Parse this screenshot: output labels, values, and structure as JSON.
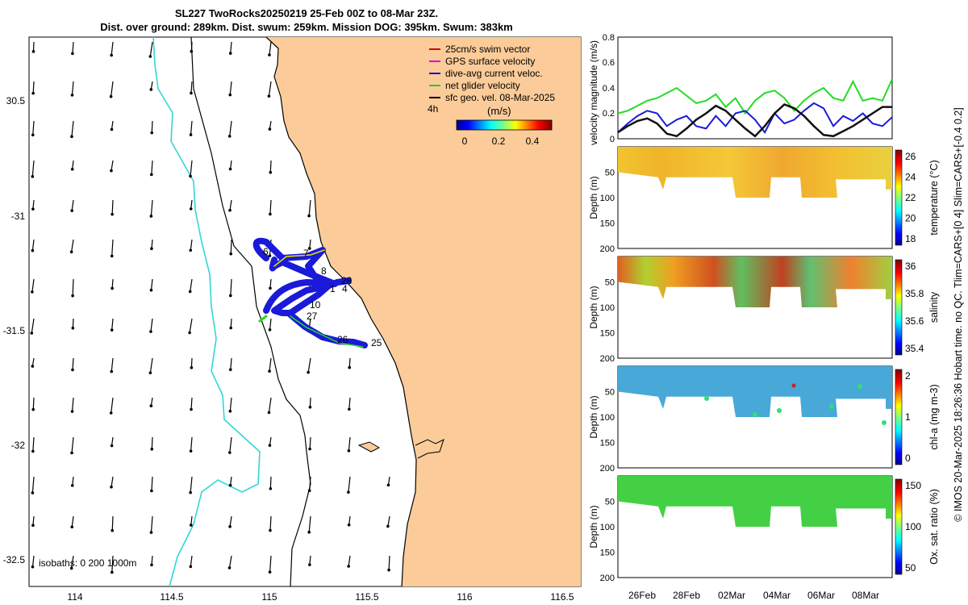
{
  "title": {
    "line1": "SL227 TwoRocks20250219 25-Feb 00Z to 08-Mar 23Z.",
    "line2": "Dist. over ground: 289km. Dist. swum: 259km. Mission DOG: 395km. Swum: 383km"
  },
  "map": {
    "x_ticks": [
      "114",
      "114.5",
      "115",
      "115.5",
      "116",
      "116.5"
    ],
    "y_ticks": [
      "30.5",
      "-31",
      "-31.5",
      "-32",
      "-32.5"
    ],
    "isobaths_label": "isobaths: 0   200  1000m",
    "time_label": "4h",
    "colorbar": {
      "unit": "(m/s)",
      "ticks": [
        "0",
        "0.2",
        "0.4"
      ]
    },
    "legend": [
      {
        "label": "25cm/s swim vector",
        "color": "#d40000"
      },
      {
        "label": "GPS surface velocity",
        "color": "#e000e0"
      },
      {
        "label": "dive-avg current veloc.",
        "color": "#1010e0"
      },
      {
        "label": "net glider velocity",
        "color": "#20d020"
      },
      {
        "label": "sfc geo. vel. 08-Mar-2025",
        "color": "#000000"
      }
    ],
    "day_labels": [
      "6",
      "7",
      "8",
      "28",
      "1",
      "4",
      "10",
      "27",
      "26",
      "25"
    ]
  },
  "panels": [
    {
      "ylabel": "velocity magnitude (m/s)",
      "yticks": [
        "0",
        "0.2",
        "0.4",
        "0.6",
        "0.8"
      ]
    },
    {
      "ylabel": "Depth (m)",
      "yticks": [
        "50",
        "100",
        "150",
        "200"
      ],
      "cbar_label": "temperature (°C)",
      "cbar_ticks": [
        "26",
        "24",
        "22",
        "20",
        "18"
      ]
    },
    {
      "ylabel": "Depth (m)",
      "yticks": [
        "50",
        "100",
        "150",
        "200"
      ],
      "cbar_label": "salinity",
      "cbar_ticks": [
        "36",
        "35.8",
        "35.6",
        "35.4"
      ]
    },
    {
      "ylabel": "Depth (m)",
      "yticks": [
        "50",
        "100",
        "150",
        "200"
      ],
      "cbar_label": "chl-a (mg m-3)",
      "cbar_ticks": [
        "2",
        "1",
        "0"
      ]
    },
    {
      "ylabel": "Depth (m)",
      "yticks": [
        "50",
        "100",
        "150",
        "200"
      ],
      "cbar_label": "Ox. sat. ratio (%)",
      "cbar_ticks": [
        "150",
        "100",
        "50"
      ]
    }
  ],
  "time_axis": [
    "26Feb",
    "28Feb",
    "02Mar",
    "04Mar",
    "06Mar",
    "08Mar"
  ],
  "side_note": "© IMOS 20-Mar-2025 18:26:36 Hobart time. no QC. Tlim=CARS+[0 4] Slim=CARS+[-0.4 0.2]",
  "chart_data": {
    "type": "line",
    "title": "velocity magnitude",
    "ylabel": "velocity magnitude (m/s)",
    "ylim": [
      0,
      0.8
    ],
    "x_days": [
      0,
      0.5,
      1,
      1.5,
      2,
      2.5,
      3,
      3.5,
      4,
      4.5,
      5,
      5.5,
      6,
      6.5,
      7,
      7.5,
      8,
      8.5,
      9,
      9.5,
      10,
      10.5,
      11,
      11.5,
      12,
      12.5,
      13,
      13.5,
      14
    ],
    "series": [
      {
        "name": "net glider velocity",
        "color": "#22dd22",
        "values": [
          0.2,
          0.22,
          0.26,
          0.3,
          0.32,
          0.36,
          0.4,
          0.34,
          0.28,
          0.3,
          0.35,
          0.25,
          0.32,
          0.2,
          0.3,
          0.36,
          0.38,
          0.32,
          0.22,
          0.3,
          0.36,
          0.4,
          0.32,
          0.3,
          0.45,
          0.3,
          0.32,
          0.3,
          0.47
        ]
      },
      {
        "name": "dive-avg current",
        "color": "#1a1ad8",
        "values": [
          0.05,
          0.12,
          0.18,
          0.22,
          0.2,
          0.1,
          0.15,
          0.18,
          0.1,
          0.08,
          0.18,
          0.1,
          0.2,
          0.22,
          0.15,
          0.05,
          0.2,
          0.12,
          0.15,
          0.22,
          0.28,
          0.24,
          0.1,
          0.18,
          0.14,
          0.2,
          0.12,
          0.1,
          0.17
        ]
      },
      {
        "name": "sfc geo. vel.",
        "color": "#111111",
        "values": [
          0.05,
          0.1,
          0.14,
          0.16,
          0.12,
          0.04,
          0.02,
          0.08,
          0.15,
          0.2,
          0.26,
          0.22,
          0.15,
          0.08,
          0.02,
          0.1,
          0.2,
          0.27,
          0.24,
          0.18,
          0.1,
          0.03,
          0.02,
          0.06,
          0.1,
          0.15,
          0.2,
          0.25,
          0.25
        ]
      }
    ]
  }
}
